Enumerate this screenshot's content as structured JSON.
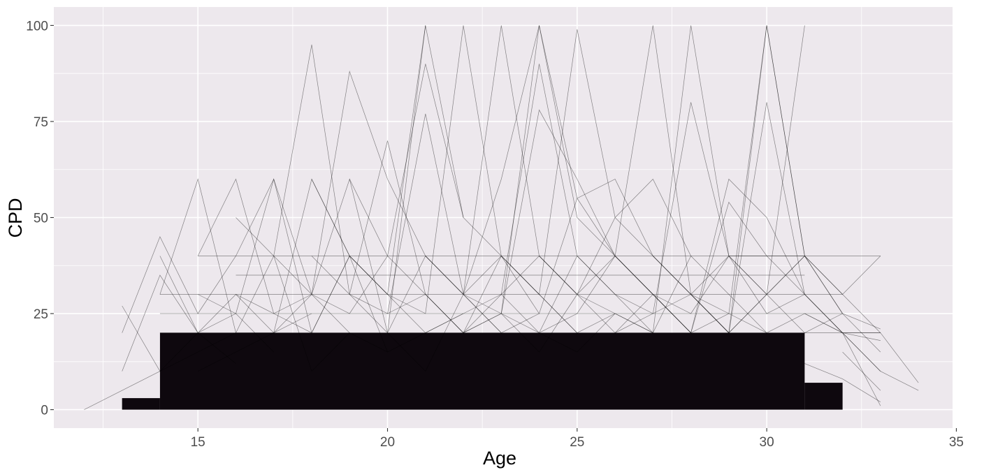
{
  "chart_data": {
    "type": "line",
    "title": "",
    "xlabel": "Age",
    "ylabel": "CPD",
    "xlim": [
      11.2,
      34.9
    ],
    "ylim": [
      -4.8,
      104.8
    ],
    "x_ticks": [
      15,
      20,
      25,
      30,
      35
    ],
    "x_tick_labels": [
      "15",
      "20",
      "25",
      "30",
      "35"
    ],
    "y_ticks": [
      0,
      25,
      50,
      75,
      100
    ],
    "y_tick_labels": [
      "0",
      "25",
      "50",
      "75",
      "100"
    ],
    "grid": true,
    "legend": "none",
    "colors": {
      "panel_background": "#EDE8ED",
      "grid_line": "#FFFFFF",
      "series_line": "#000000",
      "dense_fill": "#0E080E"
    },
    "dense_regions": [
      {
        "x_from": 14,
        "x_to": 31,
        "y_from": 0,
        "y_to": 20
      },
      {
        "x_from": 13,
        "x_to": 14,
        "y_from": 0,
        "y_to": 3
      },
      {
        "x_from": 31,
        "x_to": 32,
        "y_from": 0,
        "y_to": 7
      }
    ],
    "series": [
      {
        "x": [
          12,
          13,
          14,
          15,
          16,
          17
        ],
        "y": [
          0,
          5,
          10,
          15,
          20,
          20
        ]
      },
      {
        "x": [
          13,
          14,
          15,
          16,
          17,
          18,
          19,
          20,
          21
        ],
        "y": [
          20,
          45,
          25,
          40,
          60,
          30,
          60,
          20,
          100
        ]
      },
      {
        "x": [
          13,
          14,
          15,
          16
        ],
        "y": [
          27,
          10,
          20,
          12
        ]
      },
      {
        "x": [
          13,
          14,
          15,
          16,
          17
        ],
        "y": [
          10,
          35,
          20,
          25,
          15
        ]
      },
      {
        "x": [
          14,
          15,
          16,
          17,
          18
        ],
        "y": [
          40,
          20,
          30,
          20,
          25
        ]
      },
      {
        "x": [
          14,
          15,
          16,
          17,
          18,
          19,
          20
        ],
        "y": [
          30,
          60,
          20,
          40,
          10,
          20,
          15
        ]
      },
      {
        "x": [
          15,
          16,
          17,
          18,
          19
        ],
        "y": [
          40,
          60,
          25,
          30,
          20
        ]
      },
      {
        "x": [
          15,
          16,
          17,
          18,
          19,
          20,
          21
        ],
        "y": [
          30,
          25,
          60,
          20,
          40,
          15,
          20
        ]
      },
      {
        "x": [
          15,
          16,
          17,
          18,
          19,
          20,
          21,
          22
        ],
        "y": [
          10,
          15,
          20,
          60,
          40,
          30,
          20,
          25
        ]
      },
      {
        "x": [
          16,
          17,
          18,
          19,
          20,
          21,
          22,
          23
        ],
        "y": [
          50,
          40,
          30,
          88,
          60,
          40,
          30,
          20
        ]
      },
      {
        "x": [
          16,
          17,
          18,
          19,
          20,
          21,
          22
        ],
        "y": [
          30,
          25,
          20,
          40,
          30,
          100,
          50
        ]
      },
      {
        "x": [
          17,
          18,
          19,
          20,
          21,
          22,
          23,
          24
        ],
        "y": [
          40,
          95,
          30,
          20,
          10,
          30,
          20,
          25
        ]
      },
      {
        "x": [
          17,
          18,
          19,
          20,
          21,
          22,
          23,
          24,
          25
        ],
        "y": [
          20,
          30,
          25,
          40,
          30,
          20,
          25,
          15,
          30
        ]
      },
      {
        "x": [
          18,
          19,
          20,
          21,
          22,
          23,
          24,
          25
        ],
        "y": [
          60,
          40,
          30,
          25,
          100,
          40,
          30,
          20
        ]
      },
      {
        "x": [
          18,
          19,
          20,
          21,
          22,
          23,
          24,
          25,
          26
        ],
        "y": [
          40,
          30,
          70,
          30,
          20,
          25,
          20,
          15,
          25
        ]
      },
      {
        "x": [
          19,
          20,
          21,
          22,
          23,
          24,
          25,
          26,
          27
        ],
        "y": [
          60,
          40,
          90,
          50,
          40,
          30,
          20,
          25,
          20
        ]
      },
      {
        "x": [
          19,
          20,
          21,
          22,
          23,
          24,
          25,
          26,
          27,
          28
        ],
        "y": [
          30,
          25,
          77,
          30,
          100,
          40,
          30,
          25,
          20,
          40
        ]
      },
      {
        "x": [
          20,
          21,
          22,
          23,
          24,
          25,
          26,
          27,
          28
        ],
        "y": [
          20,
          40,
          30,
          60,
          100,
          50,
          40,
          30,
          20
        ]
      },
      {
        "x": [
          20,
          21,
          22,
          23,
          24,
          25,
          26,
          27,
          28,
          29
        ],
        "y": [
          25,
          30,
          20,
          40,
          30,
          99,
          50,
          40,
          30,
          20
        ]
      },
      {
        "x": [
          21,
          22,
          23,
          24,
          25,
          26,
          27,
          28,
          29,
          30
        ],
        "y": [
          40,
          30,
          25,
          100,
          55,
          40,
          100,
          30,
          25,
          20
        ]
      },
      {
        "x": [
          21,
          22,
          23,
          24,
          25,
          26,
          27,
          28,
          29,
          30
        ],
        "y": [
          20,
          25,
          30,
          20,
          40,
          30,
          20,
          100,
          40,
          30
        ]
      },
      {
        "x": [
          22,
          23,
          24,
          25,
          26,
          27,
          28,
          29,
          30,
          31
        ],
        "y": [
          30,
          40,
          25,
          55,
          60,
          40,
          30,
          20,
          100,
          40
        ]
      },
      {
        "x": [
          22,
          23,
          24,
          25,
          26,
          27,
          28,
          29,
          30,
          31
        ],
        "y": [
          20,
          30,
          40,
          30,
          20,
          25,
          30,
          20,
          80,
          30
        ]
      },
      {
        "x": [
          23,
          24,
          25,
          26,
          27,
          28,
          29,
          30,
          31
        ],
        "y": [
          30,
          90,
          40,
          30,
          25,
          80,
          40,
          30,
          100
        ]
      },
      {
        "x": [
          23,
          24,
          25,
          26,
          27,
          28,
          29,
          30,
          31,
          32
        ],
        "y": [
          25,
          78,
          60,
          40,
          30,
          20,
          25,
          100,
          40,
          25
        ]
      },
      {
        "x": [
          24,
          25,
          26,
          27,
          28,
          29,
          30,
          31,
          32
        ],
        "y": [
          40,
          30,
          50,
          60,
          40,
          30,
          20,
          25,
          20
        ]
      },
      {
        "x": [
          24,
          25,
          26,
          27,
          28,
          29,
          30,
          31,
          32,
          33
        ],
        "y": [
          20,
          25,
          40,
          30,
          20,
          60,
          50,
          30,
          20,
          20
        ]
      },
      {
        "x": [
          25,
          26,
          27,
          28,
          29,
          30,
          31,
          32,
          33
        ],
        "y": [
          30,
          40,
          30,
          20,
          54,
          40,
          40,
          25,
          21
        ]
      },
      {
        "x": [
          26,
          27,
          28,
          29,
          30,
          31,
          32,
          33
        ],
        "y": [
          20,
          30,
          25,
          40,
          40,
          30,
          20,
          18
        ]
      },
      {
        "x": [
          27,
          28,
          29,
          30,
          31,
          32,
          33,
          34
        ],
        "y": [
          40,
          30,
          20,
          30,
          40,
          30,
          20,
          7
        ]
      },
      {
        "x": [
          28,
          29,
          30,
          31,
          32,
          33,
          34
        ],
        "y": [
          30,
          40,
          25,
          30,
          20,
          10,
          5
        ]
      },
      {
        "x": [
          29,
          30,
          31,
          32,
          33
        ],
        "y": [
          20,
          30,
          40,
          30,
          40
        ]
      },
      {
        "x": [
          30,
          31,
          32,
          33
        ],
        "y": [
          30,
          20,
          25,
          15
        ]
      },
      {
        "x": [
          31,
          32,
          33
        ],
        "y": [
          25,
          20,
          10
        ]
      },
      {
        "x": [
          32,
          33
        ],
        "y": [
          20,
          1
        ]
      },
      {
        "x": [
          32,
          33
        ],
        "y": [
          15,
          5
        ]
      },
      {
        "x": [
          31,
          32,
          33
        ],
        "y": [
          12,
          8,
          2
        ]
      },
      {
        "x": [
          15,
          16,
          17,
          18,
          19,
          20,
          21,
          22,
          23,
          24,
          25,
          26,
          27,
          28,
          29,
          30,
          31
        ],
        "y": [
          40,
          40,
          40,
          40,
          40,
          40,
          40,
          40,
          40,
          40,
          40,
          40,
          40,
          40,
          40,
          40,
          40
        ]
      },
      {
        "x": [
          31,
          32,
          33
        ],
        "y": [
          40,
          40,
          40
        ]
      },
      {
        "x": [
          14,
          15,
          16,
          17,
          18,
          19,
          20,
          21,
          22,
          23,
          24,
          25,
          26,
          27,
          28,
          29,
          30,
          31,
          32
        ],
        "y": [
          30,
          30,
          30,
          30,
          30,
          30,
          30,
          30,
          30,
          30,
          30,
          30,
          30,
          30,
          30,
          30,
          30,
          30,
          30
        ]
      },
      {
        "x": [
          14,
          15,
          16,
          17,
          18,
          19,
          20,
          21,
          22,
          23,
          24,
          25,
          26,
          27,
          28,
          29,
          30,
          31,
          32
        ],
        "y": [
          25,
          25,
          25,
          25,
          25,
          25,
          25,
          25,
          25,
          25,
          25,
          25,
          25,
          25,
          25,
          25,
          25,
          25,
          25
        ]
      },
      {
        "x": [
          14,
          15,
          16,
          17,
          18,
          19,
          20,
          21,
          22,
          23,
          24,
          25,
          26,
          27,
          28,
          29,
          30,
          31,
          32,
          33
        ],
        "y": [
          20,
          20,
          20,
          20,
          20,
          20,
          20,
          20,
          20,
          20,
          20,
          20,
          20,
          20,
          20,
          20,
          20,
          20,
          20,
          20
        ]
      },
      {
        "x": [
          16,
          17,
          18,
          19,
          20,
          21,
          22,
          23,
          24,
          25,
          26,
          27,
          28,
          29,
          30,
          31
        ],
        "y": [
          35,
          35,
          35,
          35,
          35,
          35,
          35,
          35,
          35,
          35,
          35,
          35,
          35,
          35,
          35,
          35
        ]
      }
    ]
  }
}
